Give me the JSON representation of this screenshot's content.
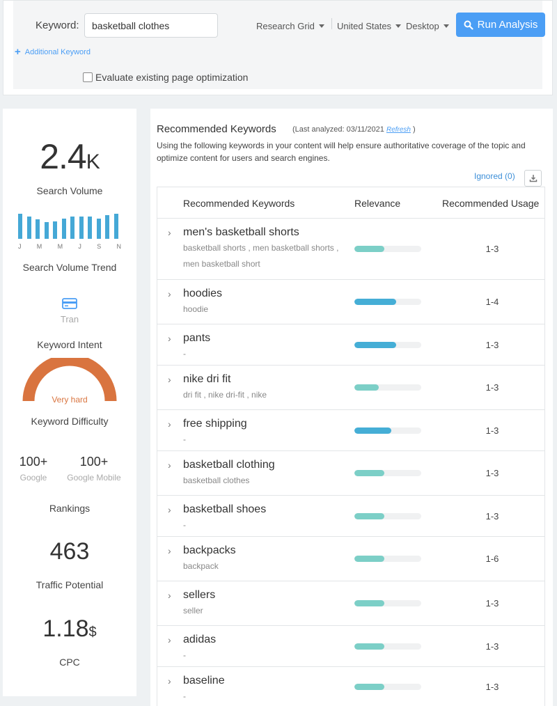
{
  "search": {
    "keyword_label": "Keyword:",
    "keyword_value": "basketball clothes",
    "research_grid": "Research Grid",
    "country": "United States",
    "device": "Desktop",
    "run_label": "Run Analysis",
    "additional_keyword": "Additional Keyword",
    "evaluate_label": "Evaluate existing page optimization"
  },
  "stats": {
    "search_volume": "2.4",
    "search_volume_unit": "K",
    "search_volume_label": "Search Volume",
    "trend": [
      0.95,
      0.84,
      0.74,
      0.64,
      0.66,
      0.77,
      0.84,
      0.84,
      0.84,
      0.77,
      0.9,
      0.95
    ],
    "trend_months": [
      "J",
      "M",
      "M",
      "J",
      "S",
      "N"
    ],
    "trend_label": "Search Volume Trend",
    "intent_value": "Tran",
    "intent_label": "Keyword Intent",
    "difficulty_value": "Very hard",
    "difficulty_label": "Keyword Difficulty",
    "google_rank": "100+",
    "google_label": "Google",
    "mobile_rank": "100+",
    "mobile_label": "Google Mobile",
    "rankings_label": "Rankings",
    "traffic_value": "463",
    "traffic_label": "Traffic Potential",
    "cpc_value": "1.18",
    "cpc_unit": "$",
    "cpc_label": "CPC"
  },
  "recommended": {
    "title": "Recommended Keywords",
    "last_analyzed": "(Last analyzed: 03/11/2021",
    "refresh": "Refresh",
    "close_paren": ")",
    "description": "Using the following keywords in your content will help ensure authoritative coverage of the topic and optimize content for users and search engines.",
    "ignored": "Ignored (0)",
    "col_keywords": "Recommended Keywords",
    "col_relevance": "Relevance",
    "col_usage": "Recommended Usage",
    "rows": [
      {
        "name": "men's basketball shorts",
        "variants": "basketball shorts ,  men basketball shorts ,  men basketball short",
        "relevance": 0.45,
        "level": "low",
        "usage": "1-3"
      },
      {
        "name": "hoodies",
        "variants": "hoodie",
        "relevance": 0.63,
        "level": "high",
        "usage": "1-4"
      },
      {
        "name": "pants",
        "variants": "-",
        "relevance": 0.63,
        "level": "high",
        "usage": "1-3"
      },
      {
        "name": "nike dri fit",
        "variants": "dri fit ,  nike dri-fit ,  nike",
        "relevance": 0.36,
        "level": "low",
        "usage": "1-3"
      },
      {
        "name": "free shipping",
        "variants": "-",
        "relevance": 0.55,
        "level": "high",
        "usage": "1-3"
      },
      {
        "name": "basketball clothing",
        "variants": "basketball clothes",
        "relevance": 0.45,
        "level": "low",
        "usage": "1-3"
      },
      {
        "name": "basketball shoes",
        "variants": "-",
        "relevance": 0.45,
        "level": "low",
        "usage": "1-3"
      },
      {
        "name": "backpacks",
        "variants": "backpack",
        "relevance": 0.45,
        "level": "low",
        "usage": "1-6"
      },
      {
        "name": "sellers",
        "variants": "seller",
        "relevance": 0.45,
        "level": "low",
        "usage": "1-3"
      },
      {
        "name": "adidas",
        "variants": "-",
        "relevance": 0.45,
        "level": "low",
        "usage": "1-3"
      },
      {
        "name": "baseline",
        "variants": "-",
        "relevance": 0.45,
        "level": "low",
        "usage": "1-3"
      }
    ]
  },
  "colors": {
    "accent": "#4b9ef5",
    "trend_bar": "#45a8d6",
    "relevance_high": "#45aed6",
    "relevance_low": "#7ccfc7",
    "difficulty": "#d9743f"
  }
}
